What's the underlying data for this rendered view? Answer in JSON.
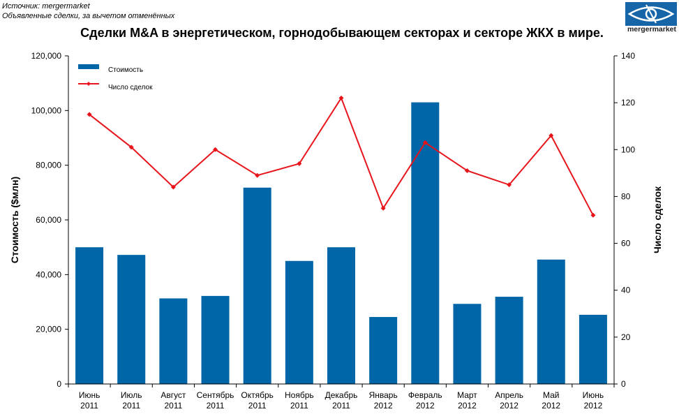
{
  "source": {
    "line1": "Источник: mergermarket",
    "line2": "Объявленные сделки, за вычетом отменённых"
  },
  "logo": {
    "text": "mergermarket",
    "color": "#1565a8"
  },
  "chart_data": {
    "type": "bar",
    "title": "Сделки M&A в энергетическом, горнодобывающем  секторах и секторе ЖКХ в мире.",
    "categories": [
      [
        "Июнь",
        "2011"
      ],
      [
        "Июль",
        "2011"
      ],
      [
        "Август",
        "2011"
      ],
      [
        "Сентябрь",
        "2011"
      ],
      [
        "Октябрь",
        "2011"
      ],
      [
        "Ноябрь",
        "2011"
      ],
      [
        "Декабрь",
        "2011"
      ],
      [
        "Январь",
        "2012"
      ],
      [
        "Февраль",
        "2012"
      ],
      [
        "Март",
        "2012"
      ],
      [
        "Апрель",
        "2012"
      ],
      [
        "Май",
        "2012"
      ],
      [
        "Июнь",
        "2012"
      ]
    ],
    "series": [
      {
        "name": "Стоимость",
        "type": "bar",
        "axis": "left",
        "color": "#0066a8",
        "values": [
          50000,
          47200,
          31300,
          32200,
          71800,
          45000,
          50000,
          24500,
          103000,
          29300,
          31900,
          45500,
          25300
        ]
      },
      {
        "name": "Число сделок",
        "type": "line",
        "axis": "right",
        "color": "#e8141b",
        "values": [
          115,
          101,
          84,
          100,
          89,
          94,
          122,
          75,
          103,
          91,
          85,
          106,
          72
        ]
      }
    ],
    "ylabel": "Стоимость ($млн)",
    "y2label": "Число сделок",
    "ylim": [
      0,
      120000
    ],
    "y2lim": [
      0,
      140
    ],
    "yticks": [
      "0",
      "20,000",
      "40,000",
      "60,000",
      "80,000",
      "100,000",
      "120,000"
    ],
    "y2ticks": [
      "0",
      "20",
      "40",
      "60",
      "80",
      "100",
      "120",
      "140"
    ],
    "grid": false,
    "legend_position": "top-left"
  }
}
